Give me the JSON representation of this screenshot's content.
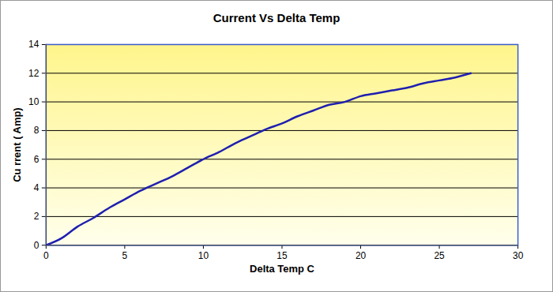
{
  "chart_data": {
    "type": "line",
    "title": "Current Vs Delta Temp",
    "x_label": "Delta Temp C",
    "y_label": "Cu rrent ( Amp)",
    "x": [
      0,
      1,
      2,
      3,
      4,
      5,
      6,
      7,
      8,
      9,
      10,
      11,
      12,
      13,
      14,
      15,
      16,
      17,
      18,
      19,
      20,
      21,
      22,
      23,
      24,
      25,
      26,
      27
    ],
    "values": [
      0,
      0.5,
      1.3,
      1.9,
      2.6,
      3.2,
      3.8,
      4.3,
      4.8,
      5.4,
      6.0,
      6.5,
      7.1,
      7.6,
      8.1,
      8.5,
      9.0,
      9.4,
      9.8,
      10.0,
      10.4,
      10.6,
      10.8,
      11.0,
      11.3,
      11.5,
      11.7,
      12.0
    ],
    "color": "#1f1fb0",
    "xlim": [
      0,
      30
    ],
    "xticks": [
      0,
      5,
      10,
      15,
      20,
      25,
      30
    ],
    "ylim": [
      0,
      14
    ],
    "yticks": [
      0,
      2,
      4,
      6,
      8,
      10,
      12,
      14
    ],
    "grid": true
  }
}
